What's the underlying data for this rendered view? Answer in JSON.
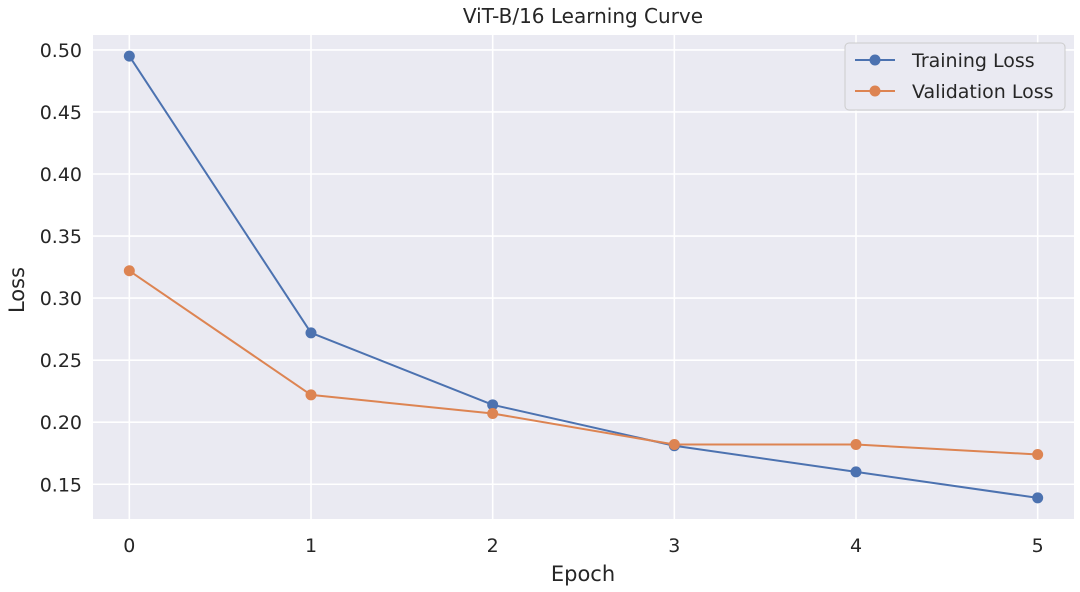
{
  "chart_data": {
    "type": "line",
    "title": "ViT-B/16 Learning Curve",
    "xlabel": "Epoch",
    "ylabel": "Loss",
    "x": [
      0,
      1,
      2,
      3,
      4,
      5
    ],
    "xticks": [
      "0",
      "1",
      "2",
      "3",
      "4",
      "5"
    ],
    "yticks": [
      "0.15",
      "0.20",
      "0.25",
      "0.30",
      "0.35",
      "0.40",
      "0.45",
      "0.50"
    ],
    "ylim": [
      0.122,
      0.512
    ],
    "xlim": [
      -0.2,
      5.2
    ],
    "grid": true,
    "legend_position": "top-right",
    "series": [
      {
        "name": "Training Loss",
        "color": "#4c72b0",
        "values": [
          0.495,
          0.272,
          0.214,
          0.181,
          0.16,
          0.139
        ]
      },
      {
        "name": "Validation Loss",
        "color": "#dd8452",
        "values": [
          0.322,
          0.222,
          0.207,
          0.182,
          0.182,
          0.174
        ]
      }
    ]
  }
}
